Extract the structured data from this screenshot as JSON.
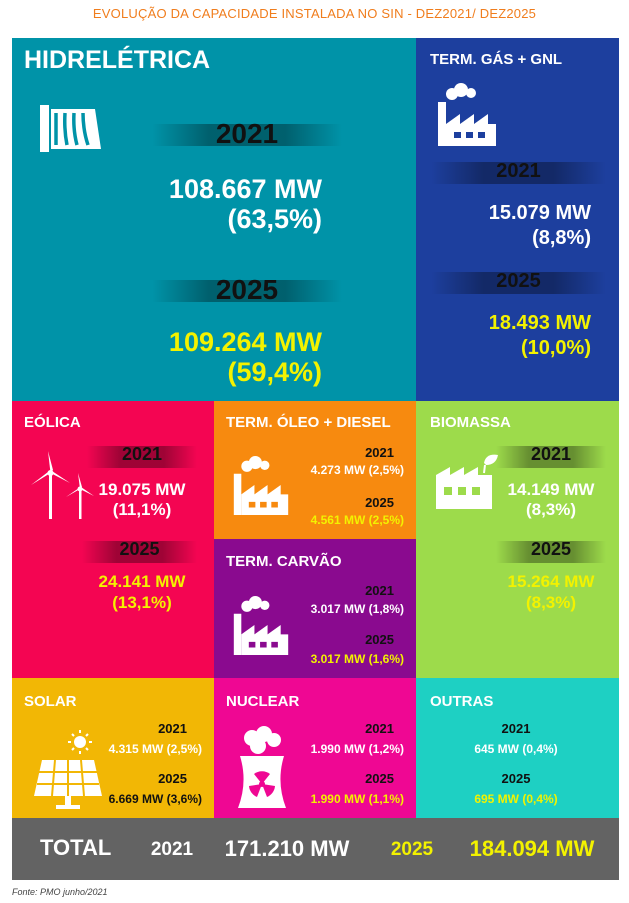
{
  "title": "EVOLUÇÃO DA CAPACIDADE INSTALADA NO SIN - DEZ2021/ DEZ2025",
  "hidreletrica": {
    "label": "HIDRELÉTRICA",
    "year1": "2021",
    "v1_mw": "108.667 MW",
    "v1_pct": "(63,5%)",
    "year2": "2025",
    "v2_mw": "109.264 MW",
    "v2_pct": "(59,4%)"
  },
  "gas": {
    "label": "TERM. GÁS + GNL",
    "year1": "2021",
    "v1_mw": "15.079 MW",
    "v1_pct": "(8,8%)",
    "year2": "2025",
    "v2_mw": "18.493 MW",
    "v2_pct": "(10,0%)"
  },
  "eolica": {
    "label": "EÓLICA",
    "year1": "2021",
    "v1_mw": "19.075 MW",
    "v1_pct": "(11,1%)",
    "year2": "2025",
    "v2_mw": "24.141 MW",
    "v2_pct": "(13,1%)"
  },
  "oleo": {
    "label": "TERM. ÓLEO + DIESEL",
    "year1": "2021",
    "v1": "4.273 MW (2,5%)",
    "year2": "2025",
    "v2": "4.561 MW (2,5%)"
  },
  "carvao": {
    "label": "TERM. CARVÃO",
    "year1": "2021",
    "v1": "3.017 MW (1,8%)",
    "year2": "2025",
    "v2": "3.017 MW (1,6%)"
  },
  "biomassa": {
    "label": "BIOMASSA",
    "year1": "2021",
    "v1_mw": "14.149 MW",
    "v1_pct": "(8,3%)",
    "year2": "2025",
    "v2_mw": "15.264 MW",
    "v2_pct": "(8,3%)"
  },
  "solar": {
    "label": "SOLAR",
    "year1": "2021",
    "v1": "4.315 MW (2,5%)",
    "year2": "2025",
    "v2": "6.669 MW (3,6%)"
  },
  "nuclear": {
    "label": "NUCLEAR",
    "year1": "2021",
    "v1": "1.990 MW (1,2%)",
    "year2": "2025",
    "v2": "1.990 MW (1,1%)"
  },
  "outras": {
    "label": "OUTRAS",
    "year1": "2021",
    "v1": "645 MW (0,4%)",
    "year2": "2025",
    "v2": "695 MW (0,4%)"
  },
  "total": {
    "label": "TOTAL",
    "year1": "2021",
    "v1": "171.210 MW",
    "year2": "2025",
    "v2": "184.094 MW"
  },
  "footer": "Fonte: PMO junho/2021",
  "colors": {
    "hidro": "#0093a8",
    "gas": "#1d3f9e",
    "eolica": "#f40552",
    "oleo": "#f78a0f",
    "carvao": "#8a0a8f",
    "biomassa": "#9ddb4b",
    "solar": "#f2b705",
    "nuclear": "#ef0793",
    "outras": "#1ed0c3",
    "total": "#636363",
    "accent": "#f3f200",
    "title": "#f07d1d"
  }
}
